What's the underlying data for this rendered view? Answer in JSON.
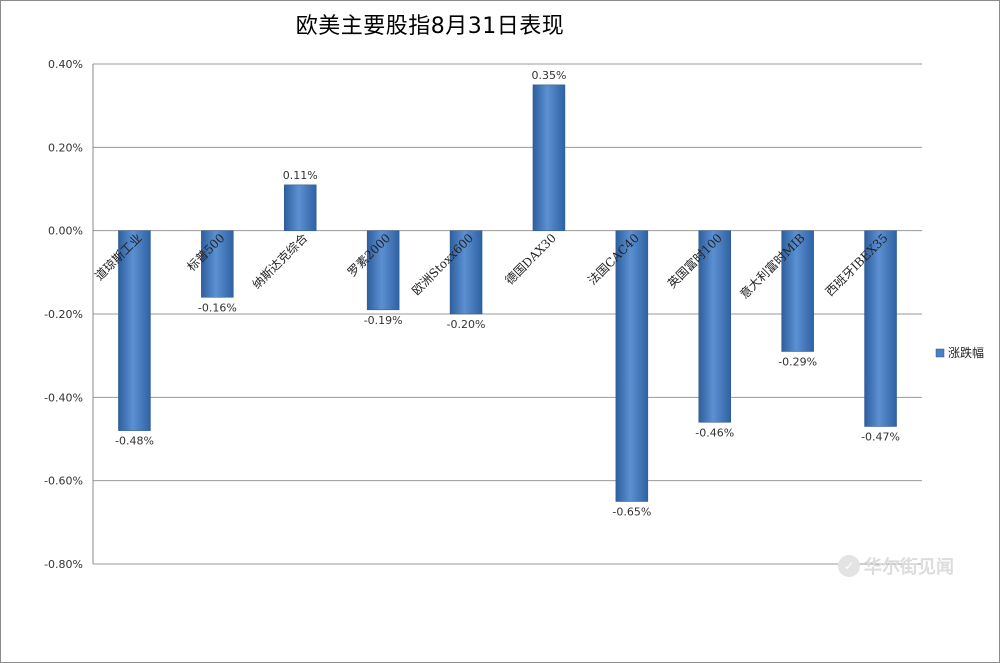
{
  "chart_data": {
    "type": "bar",
    "title": "欧美主要股指8月31日表现",
    "categories": [
      "道琼斯工业",
      "标普500",
      "纳斯达克综合",
      "罗素2000",
      "欧洲Stoxx600",
      "德国DAX30",
      "法国CAC40",
      "英国富时100",
      "意大利富时MIB",
      "西班牙IBEX35"
    ],
    "series": [
      {
        "name": "涨跌幅",
        "values": [
          -0.48,
          -0.16,
          0.11,
          -0.19,
          -0.2,
          0.35,
          -0.65,
          -0.46,
          -0.29,
          -0.47
        ]
      }
    ],
    "data_labels": [
      "-0.48%",
      "-0.16%",
      "0.11%",
      "-0.19%",
      "-0.20%",
      "0.35%",
      "-0.65%",
      "-0.46%",
      "-0.29%",
      "-0.47%"
    ],
    "y_ticks": [
      "0.40%",
      "0.20%",
      "0.00%",
      "-0.20%",
      "-0.40%",
      "-0.60%",
      "-0.80%"
    ],
    "ylim": [
      -0.8,
      0.4
    ],
    "xlabel": "",
    "ylabel": "",
    "grid": true,
    "legend": "right",
    "bar_color": "#4a7fc1"
  },
  "watermark": {
    "logo": "✓",
    "text": "华尔街见闻"
  }
}
